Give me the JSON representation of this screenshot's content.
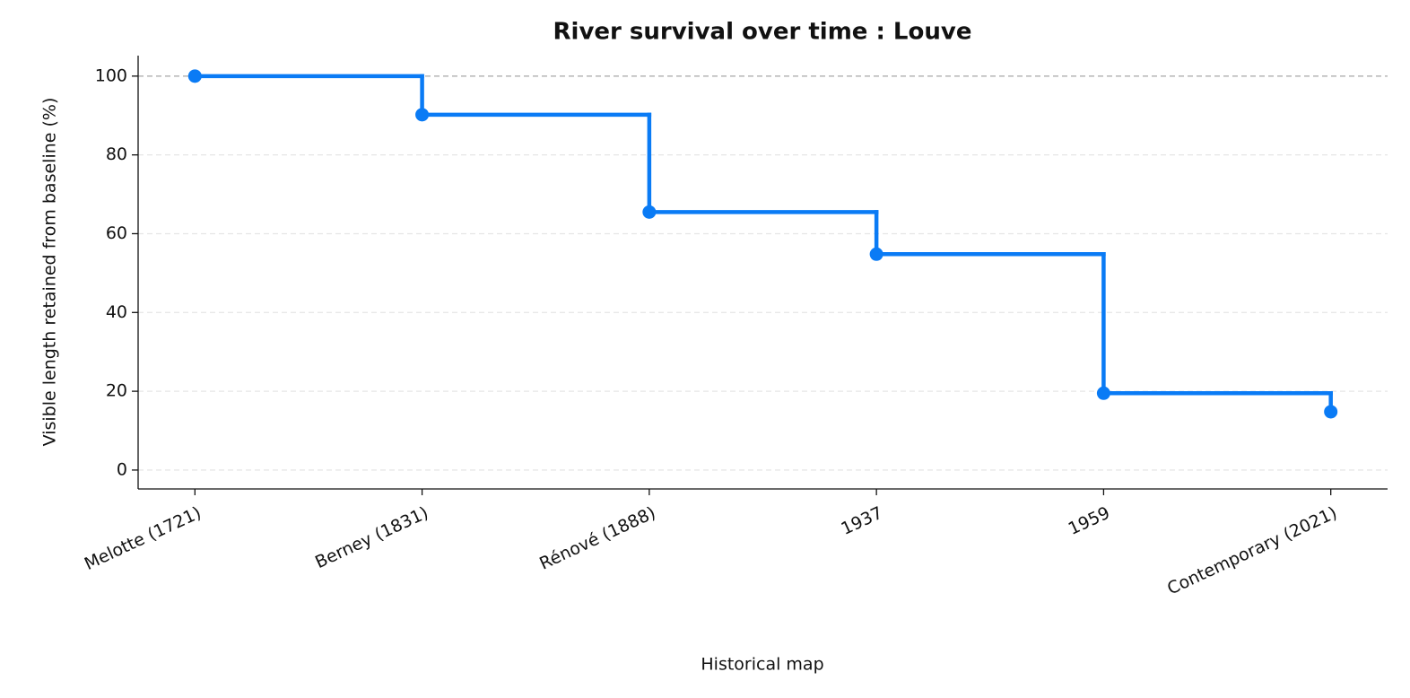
{
  "chart_data": {
    "type": "step",
    "title": "River survival over time : Louve",
    "x_label": "Historical map",
    "y_label": "Visible length retained from baseline (%)",
    "categories": [
      "Melotte (1721)",
      "Berney (1831)",
      "Rénové (1888)",
      "1937",
      "1959",
      "Contemporary (2021)"
    ],
    "values": [
      100,
      90.2,
      65.5,
      54.8,
      19.5,
      14.8
    ],
    "color": "#0a7bf5",
    "ylim": [
      -4.8,
      105.2
    ],
    "yticks": [
      0,
      20,
      40,
      60,
      80,
      100
    ],
    "reference_line": 100,
    "grid": true
  }
}
